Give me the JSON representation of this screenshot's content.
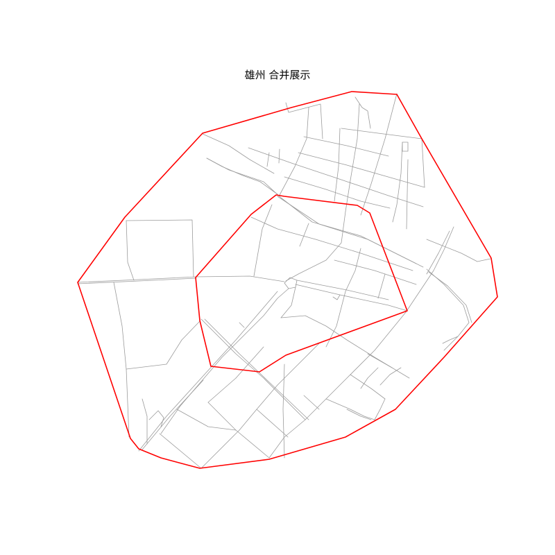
{
  "title": "雄州  合并展示",
  "colors": {
    "boundary": "#ff0000",
    "roads": "#9a9a9a",
    "background": "#ffffff"
  }
}
